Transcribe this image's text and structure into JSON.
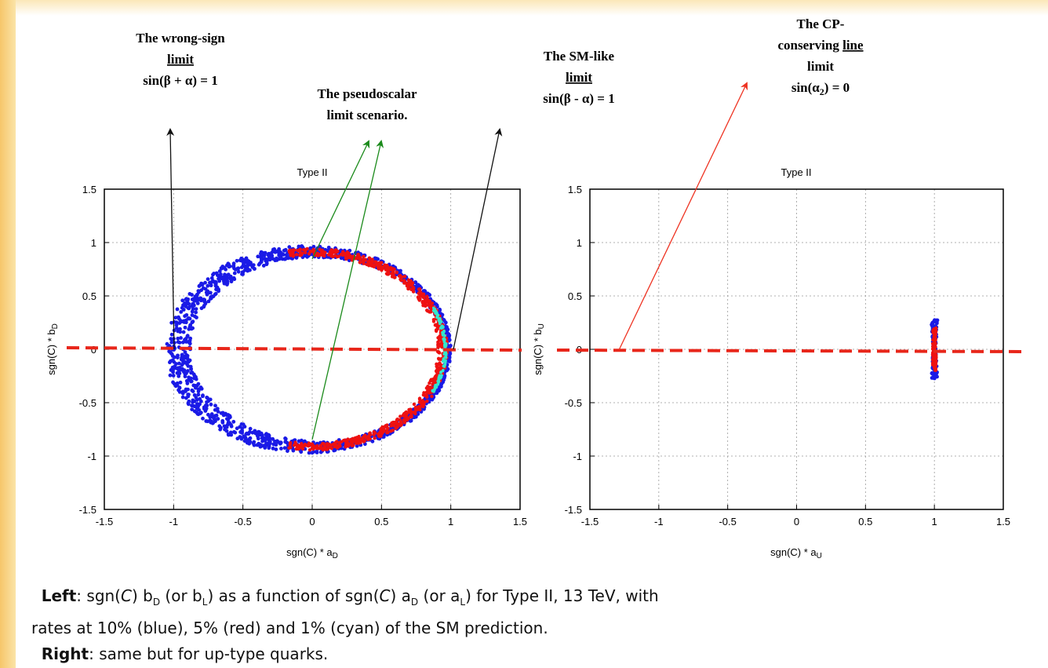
{
  "annotations": {
    "wrong_sign": {
      "line1": "The wrong-sign",
      "line2": "limit",
      "line3": "sin(β + α) = 1"
    },
    "pseudoscalar": {
      "line1": "The pseudoscalar",
      "line2": "limit scenario."
    },
    "sm_like": {
      "line1": "The SM-like",
      "line2": "limit",
      "line3": "sin(β - α) = 1"
    },
    "cp_conserving": {
      "line1": "The CP-",
      "line2a": "conserving ",
      "line2b": "line",
      "line3": "limit",
      "line4a": "sin(α",
      "line4sub": "2",
      "line4b": ") = 0"
    }
  },
  "colors": {
    "blue": "#1a1ae6",
    "red": "#ee1111",
    "cyan": "#33e6cc",
    "dashed_line": "#e8261a",
    "arrow_black": "#111111",
    "arrow_green": "#1a8a1a",
    "arrow_red": "#ee3322"
  },
  "chart_data": [
    {
      "type": "scatter",
      "title": "Type II",
      "xlabel_main": "sgn(C) * a",
      "xlabel_sub": "D",
      "ylabel_main": "sgn(C) * b",
      "ylabel_sub": "D",
      "xlim": [
        -1.5,
        1.5
      ],
      "ylim": [
        -1.5,
        1.5
      ],
      "xticks": [
        "-1.5",
        "-1",
        "-0.5",
        "0",
        "0.5",
        "1",
        "1.5"
      ],
      "yticks": [
        "-1.5",
        "-1",
        "-0.5",
        "0",
        "0.5",
        "1",
        "1.5"
      ],
      "grid": true,
      "series": [
        {
          "color": "blue",
          "description_shape": "ring",
          "center": [
            0,
            0
          ],
          "rx": 1.0,
          "ry": 0.97,
          "rate": "10%"
        },
        {
          "color": "red",
          "description_shape": "arc",
          "arc_angle_deg": [
            -100,
            100
          ],
          "rate": "5%"
        },
        {
          "color": "cyan",
          "description_shape": "arc",
          "arc_angle_deg": [
            -25,
            25
          ],
          "rate": "1%"
        }
      ],
      "dashed_line_y": 0
    },
    {
      "type": "scatter",
      "title": "Type II",
      "xlabel_main": "sgn(C) * a",
      "xlabel_sub": "U",
      "ylabel_main": "sgn(C) * b",
      "ylabel_sub": "U",
      "xlim": [
        -1.5,
        1.5
      ],
      "ylim": [
        -1.5,
        1.5
      ],
      "xticks": [
        "-1.5",
        "-1",
        "-0.5",
        "0",
        "0.5",
        "1",
        "1.5"
      ],
      "yticks": [
        "-1.5",
        "-1",
        "-0.5",
        "0",
        "0.5",
        "1",
        "1.5"
      ],
      "grid": true,
      "series": [
        {
          "color": "blue",
          "x": 1.0,
          "y_range": [
            -0.28,
            0.28
          ],
          "rate": "10%"
        },
        {
          "color": "red",
          "x": 1.0,
          "y_range": [
            -0.2,
            0.2
          ],
          "rate": "5%"
        }
      ],
      "dashed_line_y": 0
    }
  ],
  "caption": {
    "left_label": "Left",
    "left_text_1": ": sgn(",
    "left_text_C": "C",
    "left_text_2": ") b",
    "left_sub_D": "D",
    "left_text_3": " (or b",
    "left_sub_L": "L",
    "left_text_4": ") as a function of sgn(",
    "left_text_C2": "C",
    "left_text_5": ") a",
    "left_sub_D2": "D",
    "left_text_6": " (or a",
    "left_sub_L2": "L",
    "left_text_7": ") for Type II, 13 TeV, with",
    "line2": "rates at 10% (blue), 5% (red) and 1% (cyan) of the SM prediction.",
    "right_label": "Right",
    "right_text": ": same but for up-type quarks."
  }
}
